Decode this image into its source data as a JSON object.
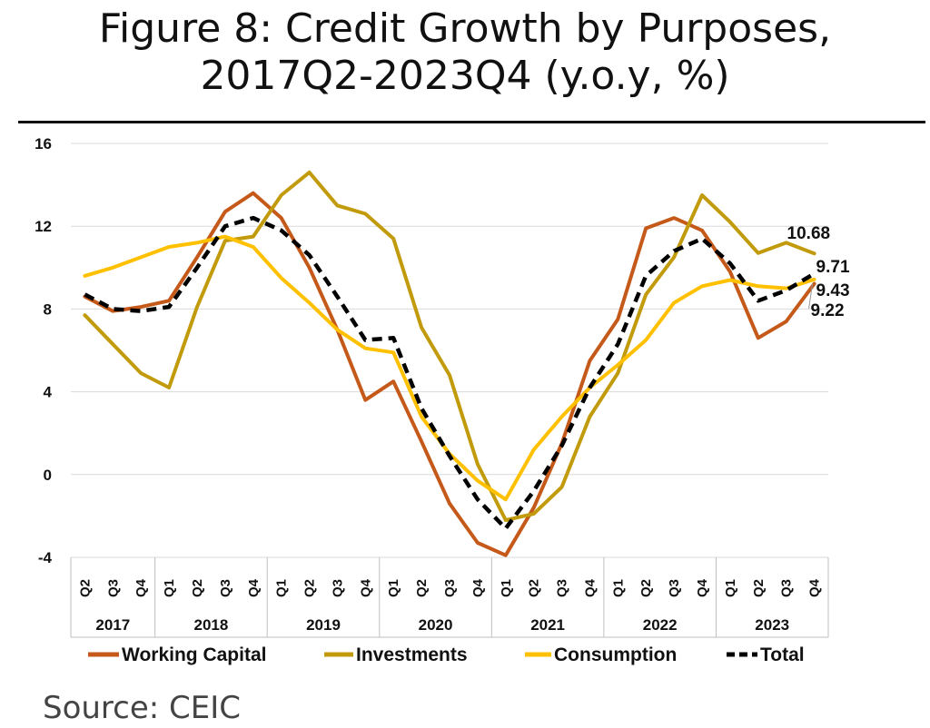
{
  "title": {
    "line1": "Figure 8: Credit Growth by Purposes,",
    "line2": "2017Q2-2023Q4 (y.o.y, %)"
  },
  "source": "Source: CEIC",
  "chart_data": {
    "type": "line",
    "title": "Figure 8: Credit Growth by Purposes, 2017Q2-2023Q4 (y.o.y, %)",
    "xlabel": "",
    "ylabel": "",
    "ylim": [
      -4,
      16
    ],
    "yticks": [
      "-4",
      "0",
      "4",
      "8",
      "12",
      "16"
    ],
    "grid": true,
    "legend_position": "bottom",
    "quarters": [
      "Q2",
      "Q3",
      "Q4",
      "Q1",
      "Q2",
      "Q3",
      "Q4",
      "Q1",
      "Q2",
      "Q3",
      "Q4",
      "Q1",
      "Q2",
      "Q3",
      "Q4",
      "Q1",
      "Q2",
      "Q3",
      "Q4",
      "Q1",
      "Q2",
      "Q3",
      "Q4",
      "Q1",
      "Q2",
      "Q3",
      "Q4"
    ],
    "years": [
      {
        "label": "2017",
        "count": 3
      },
      {
        "label": "2018",
        "count": 4
      },
      {
        "label": "2019",
        "count": 4
      },
      {
        "label": "2020",
        "count": 4
      },
      {
        "label": "2021",
        "count": 4
      },
      {
        "label": "2022",
        "count": 4
      },
      {
        "label": "2023",
        "count": 4
      }
    ],
    "series": [
      {
        "name": "Working Capital",
        "color": "#C5591A",
        "dash": "solid",
        "values": [
          8.6,
          7.9,
          8.1,
          8.4,
          10.5,
          12.7,
          13.6,
          12.4,
          10.0,
          7.0,
          3.6,
          4.5,
          1.6,
          -1.4,
          -3.3,
          -3.9,
          -1.6,
          1.5,
          5.5,
          7.5,
          11.9,
          12.4,
          11.8,
          9.8,
          6.6,
          7.4,
          9.22
        ],
        "end_label": "9.22"
      },
      {
        "name": "Investments",
        "color": "#C29B0C",
        "dash": "solid",
        "values": [
          7.7,
          6.3,
          4.9,
          4.2,
          8.1,
          11.3,
          11.5,
          13.5,
          14.6,
          13.0,
          12.6,
          11.4,
          7.1,
          4.8,
          0.5,
          -2.2,
          -1.9,
          -0.6,
          2.8,
          4.9,
          8.7,
          10.5,
          13.5,
          12.2,
          10.7,
          11.2,
          10.68
        ],
        "end_label": "10.68"
      },
      {
        "name": "Consumption",
        "color": "#FFC000",
        "dash": "solid",
        "values": [
          9.6,
          10.0,
          10.5,
          11.0,
          11.2,
          11.5,
          11.0,
          9.5,
          8.3,
          7.0,
          6.1,
          5.9,
          2.8,
          1.0,
          -0.3,
          -1.2,
          1.2,
          2.8,
          4.2,
          5.3,
          6.5,
          8.3,
          9.1,
          9.4,
          9.1,
          9.0,
          9.43
        ],
        "end_label": "9.43"
      },
      {
        "name": "Total",
        "color": "#000000",
        "dash": "dashed",
        "values": [
          8.7,
          8.0,
          7.9,
          8.1,
          10.0,
          12.0,
          12.4,
          11.8,
          10.6,
          8.6,
          6.5,
          6.6,
          3.2,
          0.9,
          -1.2,
          -2.6,
          -0.8,
          1.4,
          4.2,
          6.3,
          9.6,
          10.8,
          11.4,
          10.2,
          8.4,
          8.9,
          9.71
        ],
        "end_label": "9.71"
      }
    ]
  }
}
